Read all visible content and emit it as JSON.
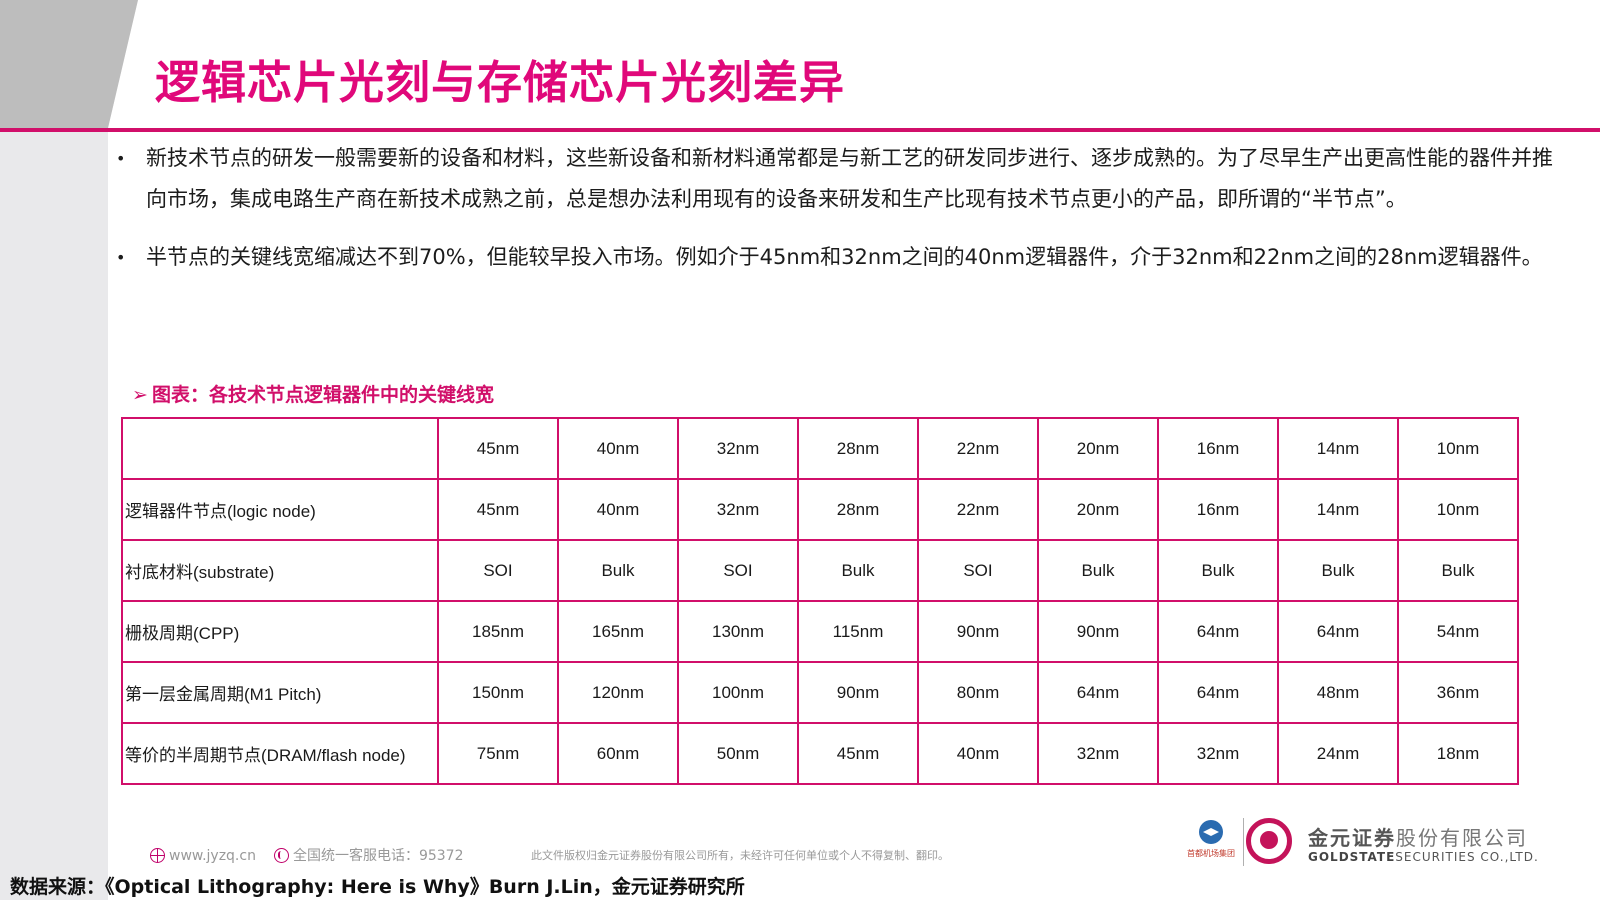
{
  "title": "逻辑芯片光刻与存储芯片光刻差异",
  "bullets": [
    {
      "text": "新技术节点的研发一般需要新的设备和材料，这些新设备和新材料通常都是与新工艺的研发同步进行、逐步成熟的。为了尽早生产出更高性能的器件并推向市场，集成电路生产商在新技术成熟之前，总是想办法利用现有的设备来研发和生产比现有技术节点更小的产品，即所谓的“半节点”。"
    },
    {
      "text": "半节点的关键线宽缩减达不到70%，但能较早投入市场。例如介于45nm和32nm之间的40nm逻辑器件，介于32nm和22nm之间的28nm逻辑器件。"
    }
  ],
  "bullet_marker": "•",
  "chart_caption": {
    "arrow": "➢",
    "text": "图表：各技术节点逻辑器件中的关键线宽"
  },
  "table": {
    "header": [
      "",
      "45nm",
      "40nm",
      "32nm",
      "28nm",
      "22nm",
      "20nm",
      "16nm",
      "14nm",
      "10nm"
    ],
    "rows": [
      [
        "逻辑器件节点(logic node)",
        "45nm",
        "40nm",
        "32nm",
        "28nm",
        "22nm",
        "20nm",
        "16nm",
        "14nm",
        "10nm"
      ],
      [
        "衬底材料(substrate)",
        "SOI",
        "Bulk",
        "SOI",
        "Bulk",
        "SOI",
        "Bulk",
        "Bulk",
        "Bulk",
        "Bulk"
      ],
      [
        "栅极周期(CPP)",
        "185nm",
        "165nm",
        "130nm",
        "115nm",
        "90nm",
        "90nm",
        "64nm",
        "64nm",
        "54nm"
      ],
      [
        "第一层金属周期(M1 Pitch)",
        "150nm",
        "120nm",
        "100nm",
        "90nm",
        "80nm",
        "64nm",
        "64nm",
        "48nm",
        "36nm"
      ],
      [
        "等价的半周期节点(DRAM/flash node)",
        "75nm",
        "60nm",
        "50nm",
        "45nm",
        "40nm",
        "32nm",
        "32nm",
        "24nm",
        "18nm"
      ]
    ]
  },
  "footer": {
    "website": "www.jyzq.cn",
    "hotline": "全国统一客服电话：95372",
    "notice": "此文件版权归金元证券股份有限公司所有，未经许可任何单位或个人不得复制、翻印。",
    "airport_logo_text": "首都机场集团",
    "brand_cn_bold": "金元证券",
    "brand_cn_rest": "股份有限公司",
    "brand_en_bold": "GOLDSTATE",
    "brand_en_rest": "SECURITIES CO.,LTD."
  },
  "source": "数据来源：《Optical Lithography: Here is Why》Burn J.Lin，金元证券研究所",
  "colors": {
    "accent": "#d10f6a",
    "title": "#e0087a",
    "side_band": "#e9e9eb",
    "side_band_dark": "#bdbdbd"
  },
  "icons": [
    "globe-icon",
    "phone-icon",
    "airport-logo-icon",
    "goldstate-logo-icon"
  ]
}
